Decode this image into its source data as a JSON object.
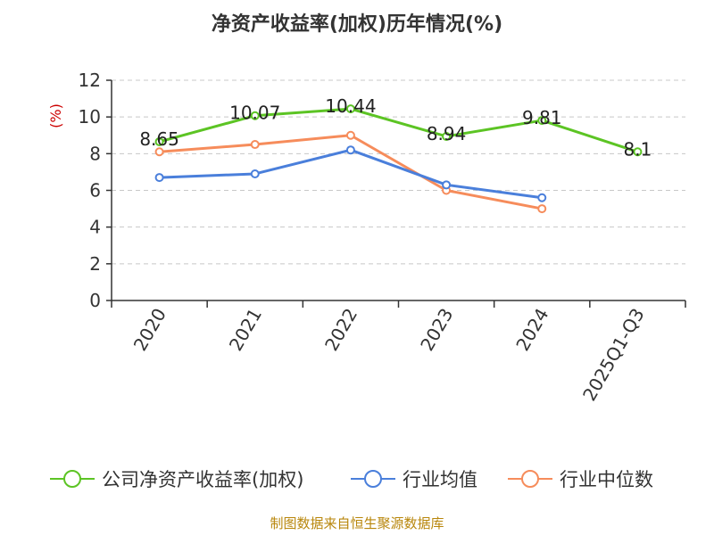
{
  "chart_data": {
    "type": "line",
    "title": "净资产收益率(加权)历年情况(%)",
    "ylabel": "(%)",
    "xlabel": "",
    "categories": [
      "2020",
      "2021",
      "2022",
      "2023",
      "2024",
      "2025Q1-Q3"
    ],
    "ylim": [
      0,
      12
    ],
    "yticks": [
      0,
      2,
      4,
      6,
      8,
      10,
      12
    ],
    "grid": true,
    "legend_position": "bottom",
    "series": [
      {
        "name": "公司净资产收益率(加权)",
        "color": "#5cc424",
        "values": [
          8.65,
          10.07,
          10.44,
          8.94,
          9.81,
          8.1
        ],
        "labels": [
          "8.65",
          "10.07",
          "10.44",
          "8.94",
          "9.81",
          "8.1"
        ]
      },
      {
        "name": "行业均值",
        "color": "#4a7fdb",
        "values": [
          6.7,
          6.9,
          8.2,
          6.3,
          5.6,
          null
        ]
      },
      {
        "name": "行业中位数",
        "color": "#f68c5b",
        "values": [
          8.1,
          8.5,
          9.0,
          6.0,
          5.0,
          null
        ]
      }
    ],
    "source": "制图数据来自恒生聚源数据库"
  }
}
